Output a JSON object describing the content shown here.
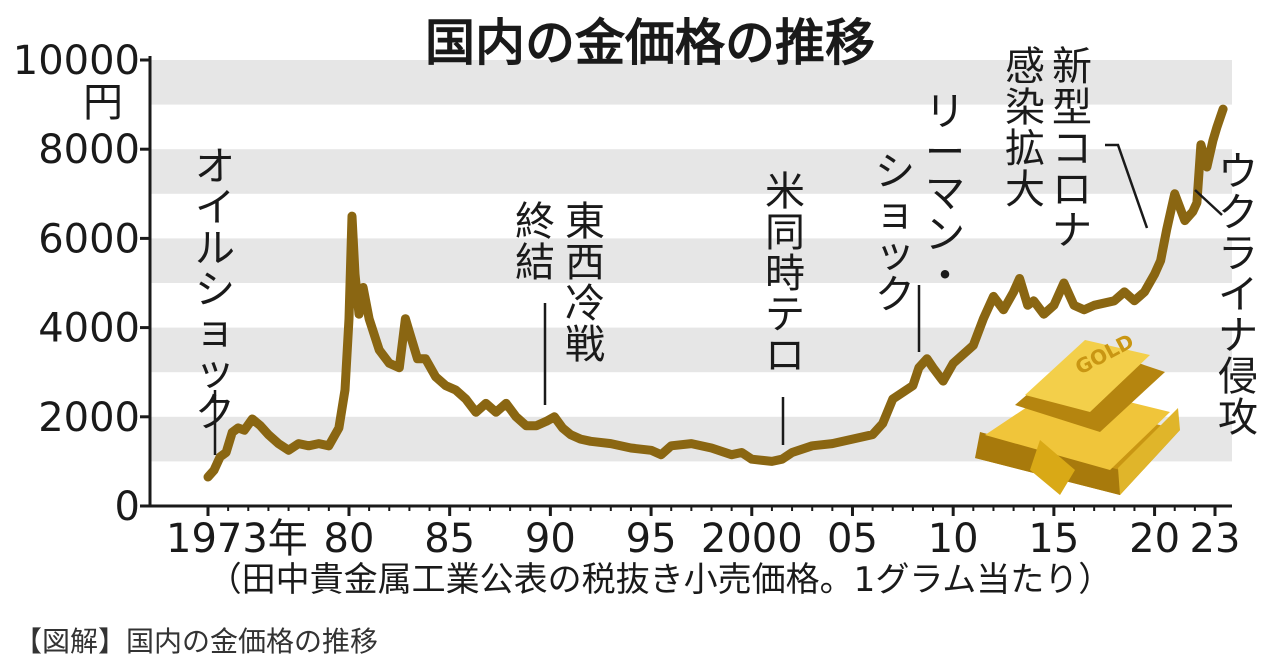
{
  "caption": "【図解】国内の金価格の推移",
  "colors": {
    "line": "#8a6612",
    "band": "#e6e6e6",
    "axis": "#1a1a1a",
    "gold": "#d4a21a"
  },
  "chart_data": {
    "type": "line",
    "title": "国内の金価格の推移",
    "unit": "円",
    "source_note": "（田中貴金属工業公表の税抜き小売価格。1グラム当たり）",
    "ylim": [
      0,
      10000
    ],
    "yticks": [
      0,
      2000,
      4000,
      6000,
      8000,
      10000
    ],
    "ytick_labels": [
      "0",
      "2000",
      "4000",
      "6000",
      "8000",
      "10000"
    ],
    "xlim": [
      1973,
      2023.4
    ],
    "xticks": [
      1973,
      1980,
      1985,
      1990,
      1995,
      2000,
      2005,
      2010,
      2015,
      2020,
      2023
    ],
    "xtick_labels": [
      "1973年",
      "80",
      "85",
      "90",
      "95",
      "2000",
      "05",
      "10",
      "15",
      "20",
      "23"
    ],
    "grid": "horizontal bands",
    "image_label": "GOLD",
    "series": [
      {
        "x": [
          1973.0,
          1973.3,
          1973.6,
          1973.9,
          1974.2,
          1974.5,
          1974.8,
          1975.2,
          1975.6,
          1976.0,
          1976.5,
          1977.0,
          1977.5,
          1978.0,
          1978.5,
          1979.0,
          1979.5,
          1979.8,
          1980.0,
          1980.15,
          1980.3,
          1980.5,
          1980.7,
          1981.0,
          1981.5,
          1982.0,
          1982.5,
          1982.8,
          1983.0,
          1983.4,
          1983.8,
          1984.3,
          1984.8,
          1985.3,
          1985.8,
          1986.3,
          1986.8,
          1987.3,
          1987.8,
          1988.3,
          1988.8,
          1989.3,
          1989.8,
          1990.2,
          1990.6,
          1991.0,
          1991.5,
          1992.0,
          1993.0,
          1994.0,
          1995.0,
          1995.5,
          1996.0,
          1997.0,
          1998.0,
          1999.0,
          1999.5,
          2000.0,
          2001.0,
          2001.5,
          2002.0,
          2003.0,
          2004.0,
          2005.0,
          2006.0,
          2006.5,
          2007.0,
          2008.0,
          2008.3,
          2008.7,
          2009.0,
          2009.5,
          2010.0,
          2011.0,
          2011.5,
          2012.0,
          2012.5,
          2013.0,
          2013.3,
          2013.7,
          2014.0,
          2014.5,
          2015.0,
          2015.5,
          2016.0,
          2016.5,
          2017.0,
          2018.0,
          2018.5,
          2019.0,
          2019.5,
          2020.0,
          2020.3,
          2020.6,
          2021.0,
          2021.5,
          2021.9,
          2022.1,
          2022.3,
          2022.6,
          2022.9,
          2023.1,
          2023.4
        ],
        "y": [
          650,
          800,
          1100,
          1200,
          1650,
          1750,
          1700,
          1950,
          1800,
          1600,
          1400,
          1250,
          1400,
          1350,
          1400,
          1350,
          1750,
          2600,
          4200,
          6500,
          5200,
          4300,
          4900,
          4200,
          3500,
          3200,
          3100,
          4200,
          3900,
          3300,
          3300,
          2900,
          2700,
          2600,
          2400,
          2100,
          2300,
          2100,
          2300,
          2000,
          1800,
          1800,
          1900,
          2000,
          1750,
          1600,
          1500,
          1450,
          1400,
          1300,
          1250,
          1150,
          1350,
          1400,
          1300,
          1150,
          1200,
          1050,
          1000,
          1050,
          1200,
          1350,
          1400,
          1500,
          1600,
          1850,
          2400,
          2700,
          3100,
          3300,
          3100,
          2800,
          3200,
          3600,
          4200,
          4700,
          4400,
          4800,
          5100,
          4500,
          4600,
          4300,
          4500,
          5000,
          4500,
          4400,
          4500,
          4600,
          4800,
          4600,
          4800,
          5200,
          5500,
          6200,
          7000,
          6400,
          6600,
          6800,
          8100,
          7600,
          8200,
          8500,
          8900
        ]
      }
    ],
    "annotations": [
      {
        "text": "オイルショック",
        "year": 1973.6
      },
      {
        "text": "東西冷戦終結",
        "year": 1989.8
      },
      {
        "text": "米同時テロ",
        "year": 2001.5
      },
      {
        "text": "リーマン・ショック",
        "year": 2008.6
      },
      {
        "text": "新型コロナ感染拡大",
        "year": 2020.4
      },
      {
        "text": "ウクライナ侵攻",
        "year": 2022.2
      }
    ]
  }
}
